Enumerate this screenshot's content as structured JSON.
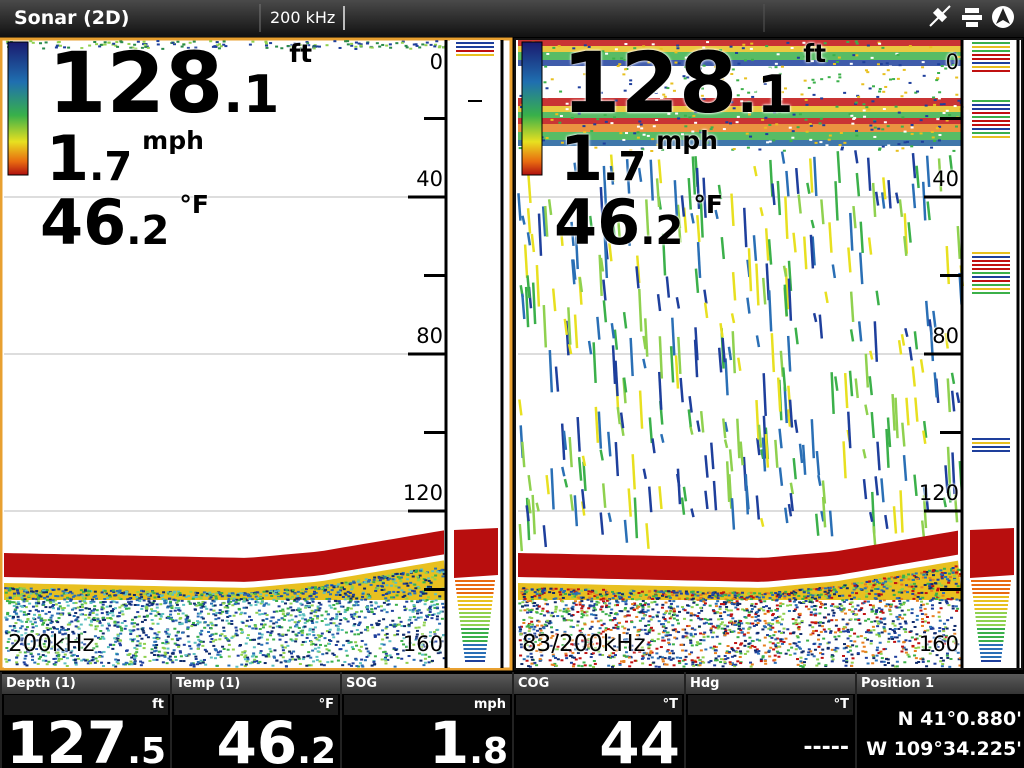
{
  "header": {
    "title": "Sonar (2D)",
    "frequency": "200 kHz"
  },
  "panes": [
    {
      "depth": {
        "value": "128",
        "decimal": ".1",
        "unit": "ft"
      },
      "speed": {
        "value": "1",
        "decimal": ".7",
        "unit": "mph"
      },
      "temperature": {
        "value": "46",
        "decimal": ".2",
        "unit": "°F"
      },
      "depth_scale": [
        0,
        40,
        80,
        120,
        160
      ],
      "frequency": "200kHz"
    },
    {
      "depth": {
        "value": "128",
        "decimal": ".1",
        "unit": "ft"
      },
      "speed": {
        "value": "1",
        "decimal": ".7",
        "unit": "mph"
      },
      "temperature": {
        "value": "46",
        "decimal": ".2",
        "unit": "°F"
      },
      "depth_scale": [
        0,
        40,
        80,
        120,
        160
      ],
      "frequency": "83/200kHz"
    }
  ],
  "data_bar": [
    {
      "label": "Depth (1)",
      "unit": "ft",
      "value": "127",
      "decimal": ".5"
    },
    {
      "label": "Temp (1)",
      "unit": "°F",
      "value": "46",
      "decimal": ".2"
    },
    {
      "label": "SOG",
      "unit": "mph",
      "value": "1",
      "decimal": ".8"
    },
    {
      "label": "COG",
      "unit": "°T",
      "value": "44"
    },
    {
      "label": "Hdg",
      "unit": "°T",
      "value": "-----"
    },
    {
      "label": "Position 1",
      "lines": [
        "N 41°0.880'",
        "W 109°34.225'"
      ]
    }
  ]
}
